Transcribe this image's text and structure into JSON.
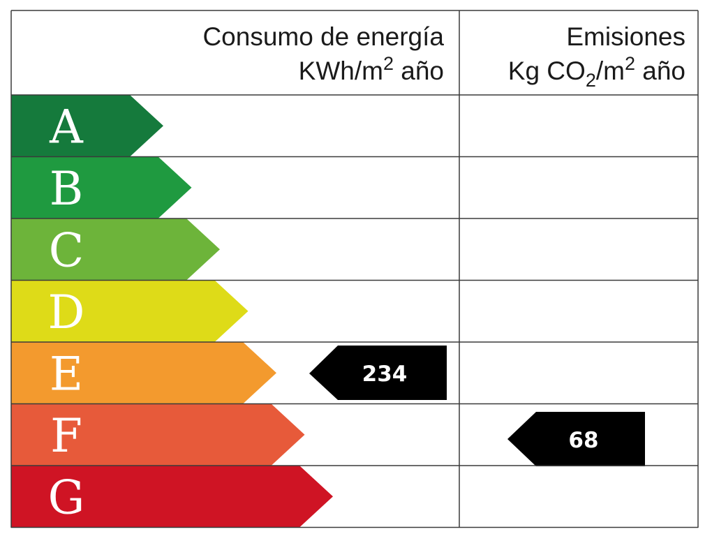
{
  "header": {
    "energy_title": "Consumo de energía",
    "energy_unit_base": "KWh/m",
    "energy_unit_exp": "2",
    "energy_unit_tail": " año",
    "emissions_title": "Emisiones",
    "emissions_unit_a": "Kg CO",
    "emissions_unit_sub": "2",
    "emissions_unit_b": "/m",
    "emissions_unit_exp": "2",
    "emissions_unit_tail": " año"
  },
  "ratings": [
    {
      "letter": "A",
      "color": "#157a3c"
    },
    {
      "letter": "B",
      "color": "#1f9a40"
    },
    {
      "letter": "C",
      "color": "#6db43a"
    },
    {
      "letter": "D",
      "color": "#dedb18"
    },
    {
      "letter": "E",
      "color": "#f39a2e"
    },
    {
      "letter": "F",
      "color": "#e75a3a"
    },
    {
      "letter": "G",
      "color": "#cf1424"
    }
  ],
  "energy_value": {
    "rating": "E",
    "value": "234"
  },
  "emissions_value": {
    "rating": "F",
    "value": "68"
  },
  "colors": {
    "indicator": "#000000",
    "grid": "#3a3a3a"
  }
}
